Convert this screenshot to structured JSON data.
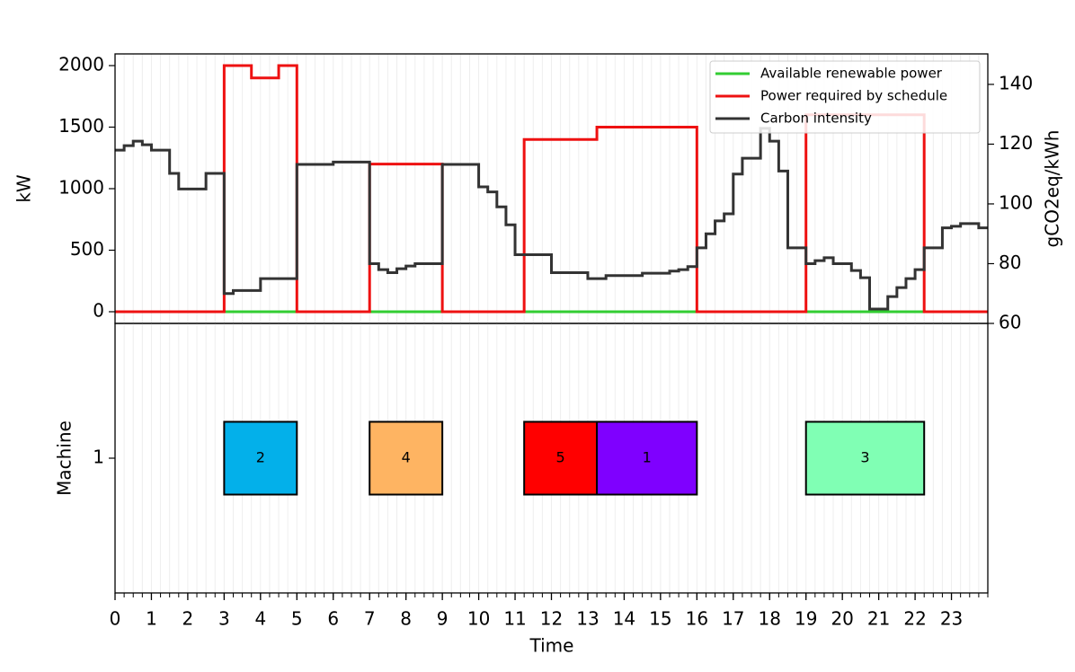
{
  "chart_data": [
    {
      "type": "line",
      "step": true,
      "xlabel": null,
      "ylabel": "kW",
      "y2label": "gCO2eq/kWh",
      "xlim": [
        0,
        24
      ],
      "ylim": [
        -95,
        2095
      ],
      "yticks": [
        0,
        500,
        1000,
        1500,
        2000
      ],
      "y2lim": [
        60,
        150.2
      ],
      "y2ticks": [
        60,
        80,
        100,
        120,
        140
      ],
      "legend": "upper right",
      "grid": true,
      "series": [
        {
          "name": "Available renewable power",
          "color": "#32cd32",
          "x": [
            0
          ],
          "values": [
            0
          ]
        },
        {
          "name": "Power required by schedule",
          "color": "#ee1111",
          "x": [
            0,
            3,
            3.75,
            4.5,
            5,
            7,
            9,
            11.25,
            13.25,
            16,
            19,
            22.25
          ],
          "values": [
            0,
            2000,
            1900,
            2000,
            0,
            1200,
            0,
            1400,
            1500,
            0,
            1600,
            0
          ]
        },
        {
          "name": "Carbon intensity",
          "color": "#333333",
          "axis": "y2",
          "x": [
            0,
            0.25,
            0.5,
            0.75,
            1,
            1.5,
            1.75,
            2.5,
            3,
            3.25,
            4,
            5,
            6,
            7,
            7.25,
            7.5,
            7.75,
            8,
            8.25,
            9,
            10,
            10.25,
            10.5,
            10.75,
            11,
            12,
            13,
            13.5,
            14.5,
            15.25,
            15.5,
            15.75,
            16,
            16.25,
            16.5,
            16.75,
            17,
            17.25,
            17.75,
            18,
            18.25,
            18.5,
            19,
            19.25,
            19.5,
            19.75,
            20.25,
            20.5,
            20.75,
            21.25,
            21.5,
            21.75,
            22,
            22.25,
            22.75,
            23,
            23.25,
            23.75
          ],
          "values": [
            118,
            119.5,
            121,
            119.8,
            118,
            110.2,
            105,
            110.2,
            70,
            71,
            75,
            113.2,
            114,
            80,
            78,
            77,
            78.3,
            79.2,
            80,
            113.2,
            105.7,
            104,
            99,
            93,
            83,
            77,
            75,
            76,
            76.8,
            77.5,
            78,
            79,
            85.3,
            90,
            94.3,
            96.7,
            110,
            115.3,
            125.3,
            121,
            111,
            85.3,
            80,
            81,
            82,
            80,
            77.7,
            75.3,
            64.8,
            69,
            72,
            75,
            78,
            85.3,
            92,
            92.5,
            93.4,
            92
          ]
        }
      ]
    },
    {
      "type": "gantt",
      "xlabel": "Time",
      "ylabel": "Machine",
      "xlim": [
        0,
        24
      ],
      "xticks": [
        0,
        1,
        2,
        3,
        4,
        5,
        6,
        7,
        8,
        9,
        10,
        11,
        12,
        13,
        14,
        15,
        16,
        17,
        18,
        19,
        20,
        21,
        22,
        23
      ],
      "ylim": [
        0,
        2
      ],
      "yticks": [
        1
      ],
      "tasks": [
        {
          "label": "2",
          "machine": 1,
          "start": 3,
          "end": 5,
          "color": "#03b0ea"
        },
        {
          "label": "4",
          "machine": 1,
          "start": 7,
          "end": 9,
          "color": "#feb462"
        },
        {
          "label": "5",
          "machine": 1,
          "start": 11.25,
          "end": 13.25,
          "color": "#ff0000"
        },
        {
          "label": "1",
          "machine": 1,
          "start": 13.25,
          "end": 16,
          "color": "#7f00ff"
        },
        {
          "label": "3",
          "machine": 1,
          "start": 19,
          "end": 22.25,
          "color": "#80ffb4"
        }
      ]
    }
  ]
}
